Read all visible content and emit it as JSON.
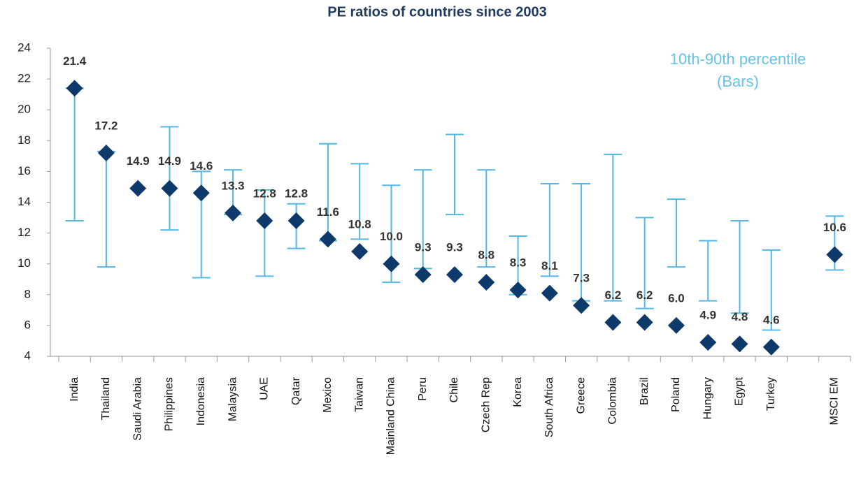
{
  "chart_data": {
    "type": "dot-range",
    "title": "PE ratios of countries since 2003",
    "annotation": [
      "10th-90th percentile",
      "(Bars)"
    ],
    "categories": [
      "India",
      "Thailand",
      "Saudi Arabia",
      "Philippines",
      "Indonesia",
      "Malaysia",
      "UAE",
      "Qatar",
      "Mexico",
      "Taiwan",
      "Mainland China",
      "Peru",
      "Chile",
      "Czech Rep",
      "Korea",
      "South Africa",
      "Greece",
      "Colombia",
      "Brazil",
      "Poland",
      "Hungary",
      "Egypt",
      "Turkey",
      null,
      "MSCI EM"
    ],
    "values": [
      21.4,
      17.2,
      14.9,
      14.9,
      14.6,
      13.3,
      12.8,
      12.8,
      11.6,
      10.8,
      10.0,
      9.3,
      9.3,
      8.8,
      8.3,
      8.1,
      7.3,
      6.2,
      6.2,
      6.0,
      4.9,
      4.8,
      4.6,
      null,
      10.6
    ],
    "value_labels": [
      "21.4",
      "17.2",
      "14.9",
      "14.9",
      "14.6",
      "13.3",
      "12.8",
      "12.8",
      "11.6",
      "10.8",
      "10.0",
      "9.3",
      "9.3",
      "8.8",
      "8.3",
      "8.1",
      "7.3",
      "6.2",
      "6.2",
      "6.0",
      "4.9",
      "4.8",
      "4.6",
      null,
      "10.6"
    ],
    "low": [
      12.8,
      9.8,
      null,
      12.2,
      9.1,
      13.2,
      9.2,
      11.0,
      11.5,
      11.6,
      8.8,
      9.7,
      13.2,
      9.8,
      8.0,
      9.2,
      7.6,
      7.6,
      7.1,
      9.8,
      7.6,
      6.8,
      5.7,
      null,
      9.6
    ],
    "high": [
      21.4,
      17.3,
      null,
      18.9,
      16.0,
      16.1,
      14.8,
      13.9,
      17.8,
      16.5,
      15.1,
      16.1,
      18.4,
      16.1,
      11.8,
      15.2,
      15.2,
      17.1,
      13.0,
      14.2,
      11.5,
      12.8,
      10.9,
      null,
      13.1
    ],
    "color": "#0e3a6b",
    "bar_color": "#55b8e4",
    "ylim": [
      4,
      24
    ],
    "yticks": [
      4,
      6,
      8,
      10,
      12,
      14,
      16,
      18,
      20,
      22,
      24
    ]
  }
}
